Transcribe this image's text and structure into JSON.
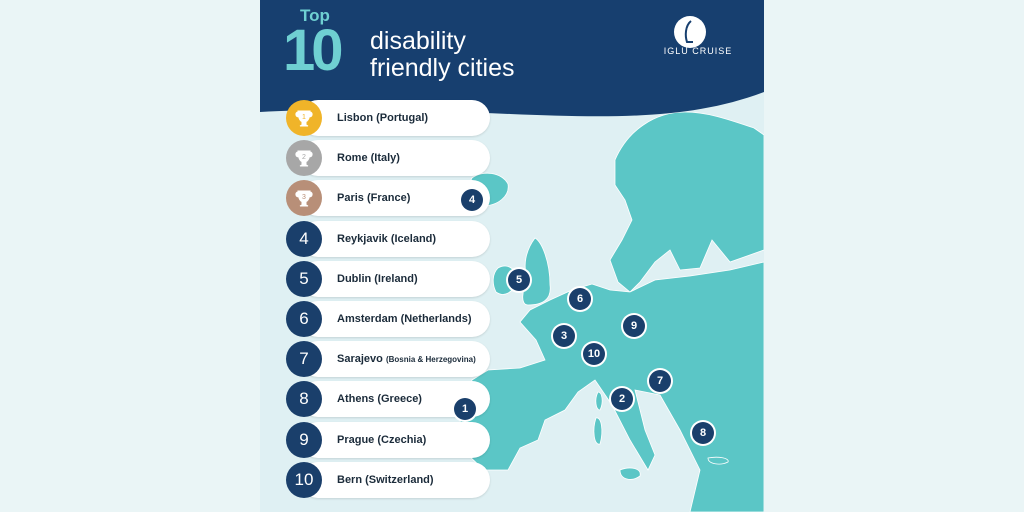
{
  "header": {
    "title_top": "Top",
    "title_number": "10",
    "title_line1": "disability",
    "title_line2": "friendly cities",
    "logo_text": "IGLU CRUISE"
  },
  "colors": {
    "navy": "#1a3f6b",
    "teal": "#5bc6c6",
    "gold": "#f0b429",
    "silver": "#a7a7a7",
    "bronze": "#b88f78"
  },
  "cities": [
    {
      "rank": "1",
      "name": "Lisbon (Portugal)",
      "medal": "gold",
      "icon": "trophy-icon"
    },
    {
      "rank": "2",
      "name": "Rome (Italy)",
      "medal": "silver",
      "icon": "trophy-icon"
    },
    {
      "rank": "3",
      "name": "Paris (France)",
      "medal": "bronze",
      "icon": "trophy-icon"
    },
    {
      "rank": "4",
      "name": "Reykjavik (Iceland)"
    },
    {
      "rank": "5",
      "name": "Dublin (Ireland)"
    },
    {
      "rank": "6",
      "name": "Amsterdam (Netherlands)"
    },
    {
      "rank": "7",
      "name": "Sarajevo",
      "name_small": "(Bosnia & Herzegovina)"
    },
    {
      "rank": "8",
      "name": "Athens (Greece)"
    },
    {
      "rank": "9",
      "name": "Prague (Czechia)"
    },
    {
      "rank": "10",
      "name": "Bern (Switzerland)"
    }
  ],
  "map_markers": [
    "4",
    "5",
    "6",
    "9",
    "3",
    "10",
    "7",
    "1",
    "2",
    "8"
  ]
}
